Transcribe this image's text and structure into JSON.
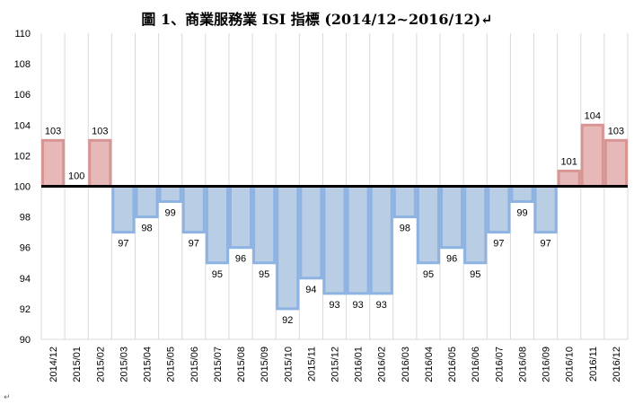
{
  "title": "圖 1、商業服務業 ISI 指標  (2014/12~2016/12)↵",
  "paragraph_mark": "↵",
  "chart_data": {
    "type": "bar",
    "title": "圖 1、商業服務業 ISI 指標  (2014/12~2016/12)",
    "xlabel": "",
    "ylabel": "",
    "baseline": 100,
    "ylim": [
      90,
      110
    ],
    "yticks": [
      90,
      92,
      94,
      96,
      98,
      100,
      102,
      104,
      106,
      108,
      110
    ],
    "grid": "vertical",
    "legend": "none",
    "categories": [
      "2014/12",
      "2015/01",
      "2015/02",
      "2015/03",
      "2015/04",
      "2015/05",
      "2015/06",
      "2015/07",
      "2015/08",
      "2015/09",
      "2015/10",
      "2015/11",
      "2015/12",
      "2016/01",
      "2016/02",
      "2016/03",
      "2016/04",
      "2016/05",
      "2016/06",
      "2016/07",
      "2016/08",
      "2016/09",
      "2016/10",
      "2016/11",
      "2016/12"
    ],
    "values": [
      103,
      100,
      103,
      97,
      98,
      99,
      97,
      95,
      96,
      95,
      92,
      94,
      93,
      93,
      93,
      98,
      95,
      96,
      95,
      97,
      99,
      97,
      101,
      104,
      103
    ],
    "colors": {
      "above_fill": "#e6b9b8",
      "above_stroke": "#d99594",
      "below_fill": "#b9cde5",
      "below_stroke": "#8db3e2",
      "baseline": "#000000",
      "grid": "#d9d9d9"
    }
  }
}
